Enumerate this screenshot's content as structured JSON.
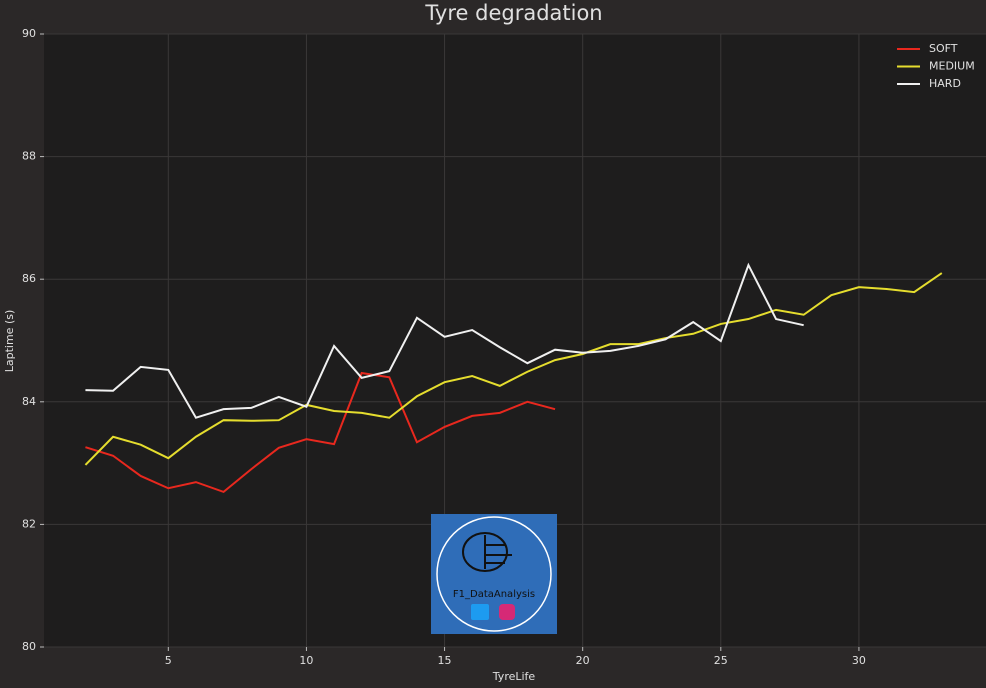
{
  "chart_data": {
    "type": "line",
    "title": "Tyre degradation",
    "x_label": "TyreLife",
    "y_label": "Laptime (s)",
    "xlim": [
      0.5,
      34.6
    ],
    "ylim": [
      80,
      90
    ],
    "xticks": [
      5,
      10,
      15,
      20,
      25,
      30
    ],
    "yticks": [
      80,
      82,
      84,
      86,
      88,
      90
    ],
    "grid": true,
    "legend": "upper right",
    "watermark": "F1_DataAnalysis",
    "series": [
      {
        "name": "SOFT",
        "color": "#e8281e",
        "x": [
          2,
          3,
          4,
          5,
          6,
          7,
          8,
          9,
          10,
          11,
          12,
          13,
          14,
          15,
          16,
          17,
          18,
          19
        ],
        "values": [
          83.26,
          83.12,
          82.79,
          82.59,
          82.69,
          82.53,
          82.9,
          83.25,
          83.39,
          83.31,
          84.47,
          84.4,
          83.34,
          83.59,
          83.77,
          83.82,
          84.0,
          83.88
        ]
      },
      {
        "name": "MEDIUM",
        "color": "#e5dd2e",
        "x": [
          2,
          3,
          4,
          5,
          6,
          7,
          8,
          9,
          10,
          11,
          12,
          13,
          14,
          15,
          16,
          17,
          18,
          19,
          20,
          21,
          22,
          23,
          24,
          25,
          26,
          27,
          28,
          29,
          30,
          31,
          32,
          33
        ],
        "values": [
          82.97,
          83.43,
          83.3,
          83.08,
          83.43,
          83.7,
          83.69,
          83.7,
          83.95,
          83.85,
          83.82,
          83.74,
          84.09,
          84.32,
          84.42,
          84.26,
          84.49,
          84.68,
          84.78,
          84.94,
          84.94,
          85.04,
          85.11,
          85.27,
          85.35,
          85.5,
          85.42,
          85.74,
          85.87,
          85.84,
          85.79,
          86.1
        ]
      },
      {
        "name": "HARD",
        "color": "#f0f0f0",
        "x": [
          2,
          3,
          4,
          5,
          6,
          7,
          8,
          9,
          10,
          11,
          12,
          13,
          14,
          15,
          16,
          17,
          18,
          19,
          20,
          21,
          22,
          23,
          24,
          25,
          26,
          27,
          28
        ],
        "values": [
          84.19,
          84.18,
          84.57,
          84.52,
          83.74,
          83.88,
          83.9,
          84.08,
          83.92,
          84.91,
          84.39,
          84.5,
          85.37,
          85.06,
          85.17,
          84.89,
          84.63,
          84.85,
          84.8,
          84.83,
          84.91,
          85.02,
          85.3,
          84.99,
          86.23,
          85.35,
          85.25
        ]
      }
    ]
  }
}
